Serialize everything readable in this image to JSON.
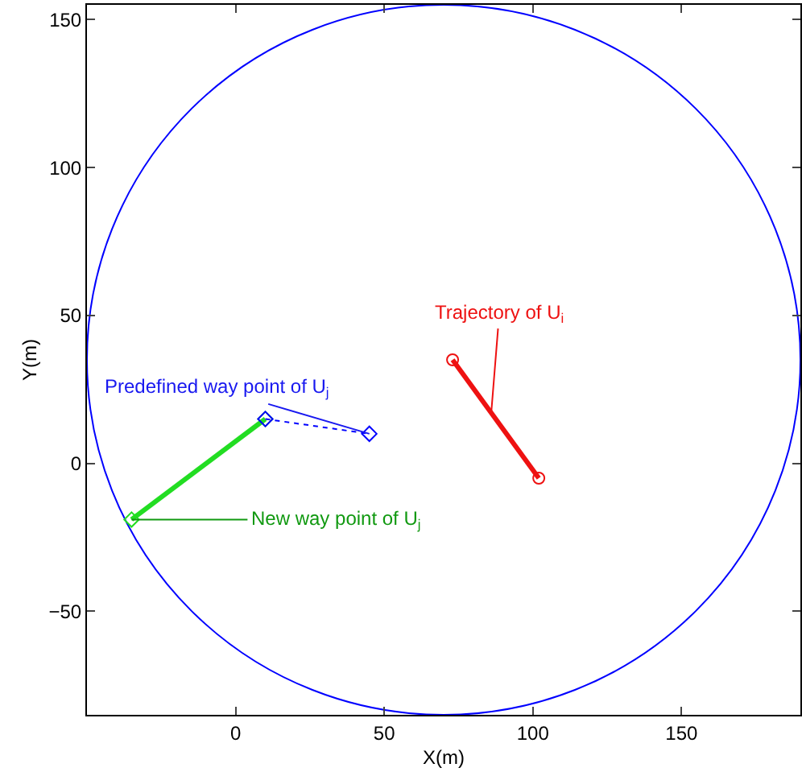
{
  "chart_data": {
    "type": "line",
    "xlabel": "X(m)",
    "ylabel": "Y(m)",
    "xlim": [
      -50,
      190
    ],
    "ylim": [
      -85,
      155
    ],
    "xticks": [
      0,
      50,
      100,
      150
    ],
    "yticks": [
      {
        "value": -50,
        "label": "−50"
      },
      0,
      50,
      100,
      150
    ],
    "grid": false,
    "series": [
      {
        "color": "#22dd22",
        "marker": "diamond",
        "line_style": "solid",
        "x": [
          10,
          -35
        ],
        "values": [
          15,
          -19
        ]
      },
      {
        "color": "#0000ff",
        "marker": "diamond",
        "line_style": "dotted",
        "x": [
          10,
          45
        ],
        "values": [
          15,
          10
        ]
      },
      {
        "color": "#ee1111",
        "marker": "circle",
        "line_style": "solid",
        "x": [
          73,
          102
        ],
        "values": [
          35,
          -5
        ]
      }
    ],
    "annotations": [
      {
        "text": "Predefined way point of U$_{j}$",
        "x": 45,
        "y": 10
      },
      {
        "text": "Trajectory of U$_{i}$",
        "x": 86,
        "y": 17
      },
      {
        "text": "New way point of U$_{j}$",
        "x": -35,
        "y": -19
      }
    ]
  }
}
